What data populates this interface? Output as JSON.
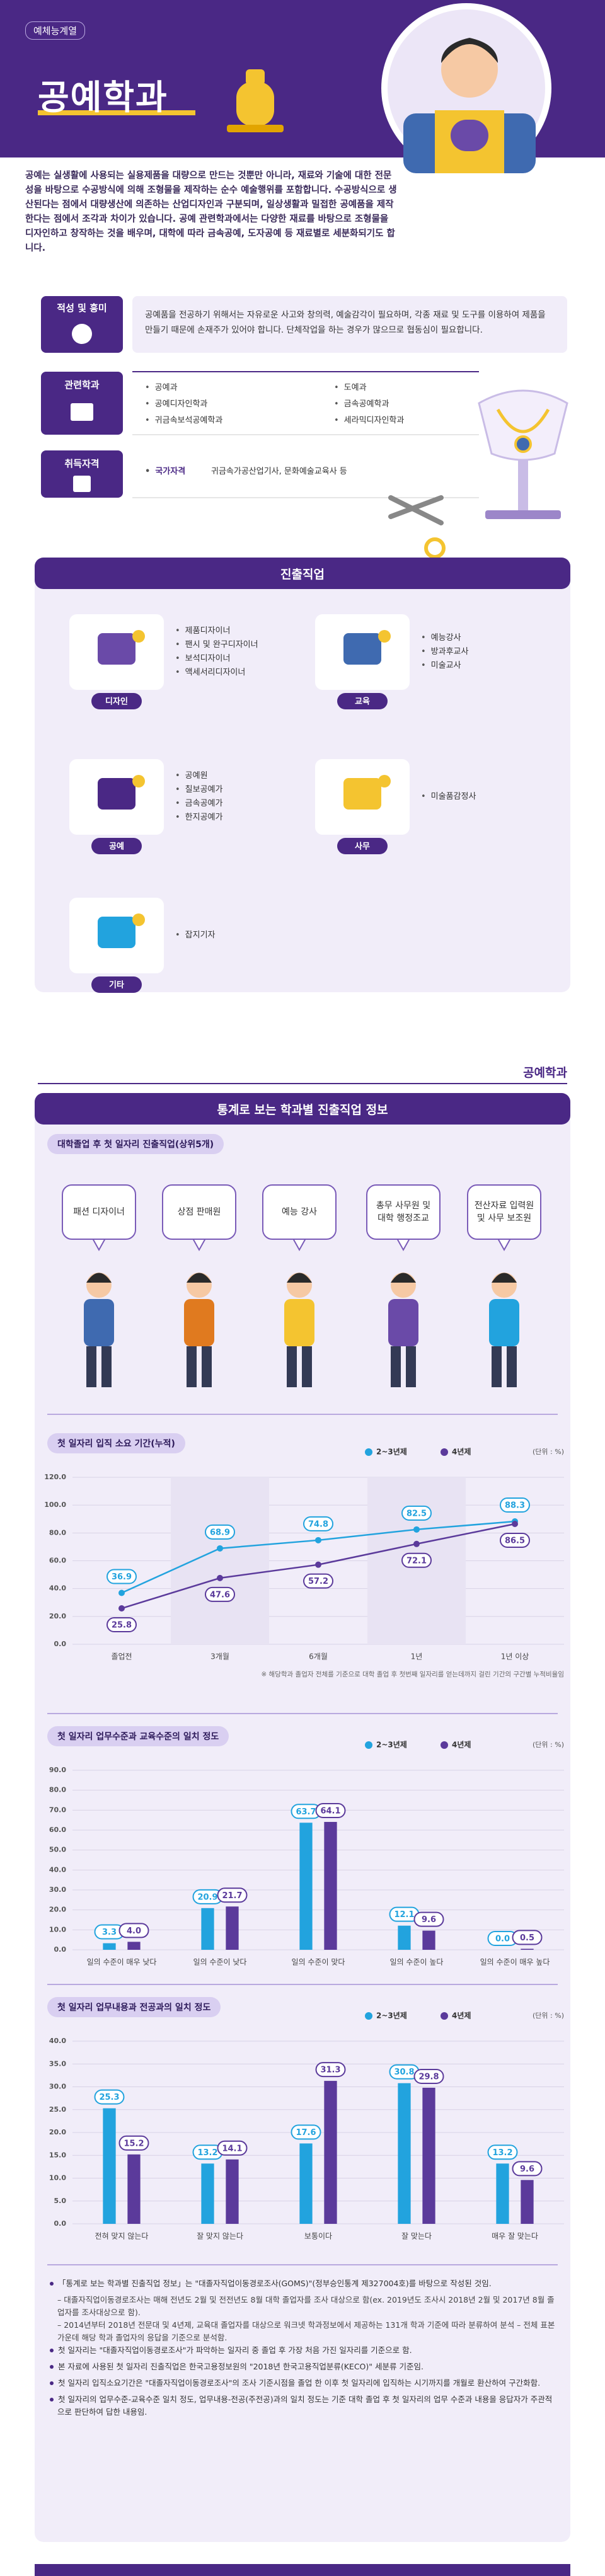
{
  "header": {
    "category": "예체능계열",
    "title": "공예학과"
  },
  "intro": "공예는 실생활에 사용되는 실용제품을 대량으로 만드는 것뿐만 아니라, 재료와 기술에 대한 전문성을 바탕으로 수공방식에 의해 조형물을 제작하는 순수 예술행위를 포함합니다. 수공방식으로 생산된다는 점에서 대량생산에 의존하는 산업디자인과 구분되며, 일상생활과 밀접한 공예품을 제작한다는 점에서 조각과 차이가 있습니다. 공예 관련학과에서는 다양한 재료를 바탕으로 조형물을 디자인하고 창작하는 것을 배우며, 대학에 따라 금속공예, 도자공예 등 재료별로 세분화되기도 합니다.",
  "aptitude": {
    "label": "적성 및 흥미",
    "text": "공예품을 전공하기 위해서는 자유로운 사고와 창의력, 예술감각이 필요하며, 각종 재료 및 도구를 이용하여 제품을 만들기 때문에 손재주가 있어야 합니다. 단체작업을 하는 경우가 많으므로 협동심이 필요합니다."
  },
  "related_departments": {
    "label": "관련학과",
    "items": [
      "공예과",
      "공예디자인학과",
      "귀금속보석공예학과",
      "도예과",
      "금속공예학과",
      "세라믹디자인학과"
    ]
  },
  "certificates": {
    "label": "취득자격",
    "type": "국가자격",
    "text": "귀금속가공산업기사, 문화예술교육사 등"
  },
  "careers": {
    "title": "진출직업",
    "groups": [
      {
        "label": "디자인",
        "jobs": [
          "제품디자이너",
          "팬시 및 완구디자이너",
          "보석디자이너",
          "액세서리디자이너"
        ]
      },
      {
        "label": "교육",
        "jobs": [
          "예능강사",
          "방과후교사",
          "미술교사"
        ]
      },
      {
        "label": "공예",
        "jobs": [
          "공예원",
          "칠보공예가",
          "금속공예가",
          "한지공예가"
        ]
      },
      {
        "label": "사무",
        "jobs": [
          "미술품감정사"
        ]
      },
      {
        "label": "기타",
        "jobs": [
          "잡지기자"
        ]
      }
    ]
  },
  "stats": {
    "department": "공예학과",
    "title": "통계로 보는 학과별 진출직업 정보",
    "top_jobs": {
      "title": "대학졸업 후 첫 일자리 진출직업(상위5개)",
      "items": [
        "패션 디자이너",
        "상점 판매원",
        "예능 강사",
        "총무 사무원 및 대학 행정조교",
        "전산자료 입력원 및 사무 보조원"
      ]
    }
  },
  "chart_data": [
    {
      "type": "line",
      "title": "첫 일자리 입직 소요 기간(누적)",
      "unit": "(단위 : %)",
      "categories": [
        "졸업전",
        "3개월",
        "6개월",
        "1년",
        "1년 이상"
      ],
      "series": [
        {
          "name": "2~3년제",
          "color": "#22a3de",
          "values": [
            36.9,
            68.9,
            74.8,
            82.5,
            88.3
          ]
        },
        {
          "name": "4년제",
          "color": "#5b3a9b",
          "values": [
            25.8,
            47.6,
            57.2,
            72.1,
            86.5
          ]
        }
      ],
      "ylim": [
        0,
        120
      ],
      "yticks": [
        {
          "value": 0,
          "label": "0.0"
        },
        {
          "value": 20,
          "label": "20.0"
        },
        {
          "value": 40,
          "label": "40.0"
        },
        {
          "value": 60,
          "label": "60.0"
        },
        {
          "value": 80,
          "label": "80.0"
        },
        {
          "value": 100,
          "label": "100.0"
        },
        {
          "value": 120,
          "label": "120.0"
        }
      ],
      "grid": true,
      "legend": "top-right",
      "note": "※ 해당학과 졸업자 전체를 기준으로 대학 졸업 후 첫번째 일자리를 얻는데까지 걸린 기간의 구간별 누적비율임"
    },
    {
      "type": "bar",
      "title": "첫 일자리 업무수준과 교육수준의 일치 정도",
      "unit": "(단위 : %)",
      "categories": [
        "일의 수준이 매우 낮다",
        "일의 수준이 낮다",
        "일의 수준이 맞다",
        "일의 수준이 높다",
        "일의 수준이 매우 높다"
      ],
      "series": [
        {
          "name": "2~3년제",
          "color": "#22a3de",
          "values": [
            3.3,
            20.9,
            63.7,
            12.1,
            0
          ],
          "value_labels": [
            "3.3",
            "20.9",
            "63.7",
            "12.1",
            "0.0"
          ]
        },
        {
          "name": "4년제",
          "color": "#5b3a9b",
          "values": [
            4,
            21.7,
            64.1,
            9.6,
            0.5
          ],
          "value_labels": [
            "4.0",
            "21.7",
            "64.1",
            "9.6",
            "0.5"
          ]
        }
      ],
      "ylim": [
        0,
        90
      ],
      "yticks": [
        {
          "value": 0,
          "label": "0.0"
        },
        {
          "value": 10,
          "label": "10.0"
        },
        {
          "value": 20,
          "label": "20.0"
        },
        {
          "value": 30,
          "label": "30.0"
        },
        {
          "value": 40,
          "label": "40.0"
        },
        {
          "value": 50,
          "label": "50.0"
        },
        {
          "value": 60,
          "label": "60.0"
        },
        {
          "value": 70,
          "label": "70.0"
        },
        {
          "value": 80,
          "label": "80.0"
        },
        {
          "value": 90,
          "label": "90.0"
        }
      ],
      "grid": true,
      "legend": "top-right"
    },
    {
      "type": "bar",
      "title": "첫 일자리 업무내용과 전공과의 일치 정도",
      "unit": "(단위 : %)",
      "categories": [
        "전혀 맞지 않는다",
        "잘 맞지 않는다",
        "보통이다",
        "잘 맞는다",
        "매우 잘 맞는다"
      ],
      "series": [
        {
          "name": "2~3년제",
          "color": "#22a3de",
          "values": [
            25.3,
            13.2,
            17.6,
            30.8,
            13.2
          ]
        },
        {
          "name": "4년제",
          "color": "#5b3a9b",
          "values": [
            15.2,
            14.1,
            31.3,
            29.8,
            9.6
          ]
        }
      ],
      "ylim": [
        0,
        40
      ],
      "yticks": [
        {
          "value": 0,
          "label": "0.0"
        },
        {
          "value": 5,
          "label": "5.0"
        },
        {
          "value": 10,
          "label": "10.0"
        },
        {
          "value": 15,
          "label": "15.0"
        },
        {
          "value": 20,
          "label": "20.0"
        },
        {
          "value": 25,
          "label": "25.0"
        },
        {
          "value": 30,
          "label": "30.0"
        },
        {
          "value": 35,
          "label": "35.0"
        },
        {
          "value": 40,
          "label": "40.0"
        }
      ],
      "grid": true,
      "legend": "top-right"
    }
  ],
  "notes": [
    {
      "text": "「통계로 보는 학과별 진출직업 정보」는 \"대졸자직업이동경로조사(GOMS)\"(정부승인통계 제327004호)를 바탕으로 작성된 것임.",
      "details": [
        "– 대졸자직업이동경로조사는 매해 전년도 2월 및 전전년도 8월 대학 졸업자를 조사 대상으로 함(ex. 2019년도 조사시 2018년 2월 및 2017년 8월 졸업자를 조사대상으로 함).",
        "– 2014년부터 2018년 전문대 및 4년제, 교육대 졸업자를 대상으로 워크넷 학과정보에서 제공하는 131개 학과 기준에 따라 분류하여 분석 – 전체 표본 가운데 해당 학과 졸업자의 응답을 기준으로 분석함."
      ]
    },
    {
      "text": "첫 일자리는 \"대졸자직업이동경로조사\"가 파악하는 일자리 중 졸업 후 가장 처음 가진 일자리를 기준으로 함.",
      "details": []
    },
    {
      "text": "본 자료에 사용된 첫 일자리 진출직업은 한국고용정보원의 \"2018년 한국고용직업분류(KECO)\" 세분류 기준임.",
      "details": []
    },
    {
      "text": "첫 일자리 입직소요기간은 \"대졸자직업이동경로조사\"의 조사 기준시점을 졸업 한 이후 첫 일자리에 입직하는 시기까지를 개월로 환산하여 구간화함.",
      "details": []
    },
    {
      "text": "첫 일자리의 업무수준-교육수준 일치 정도, 업무내용-전공(주전공)과의 일치 정도는 기준 대학 졸업 후 첫 일자리의 업무 수준과 내용을 응답자가 주관적으로 판단하여 답한 내용임.",
      "details": []
    }
  ]
}
